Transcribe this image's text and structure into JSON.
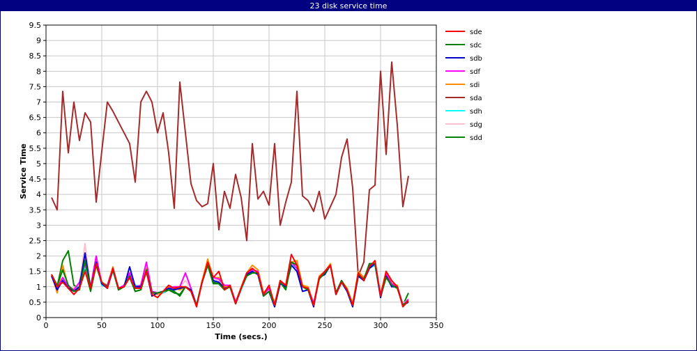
{
  "window": {
    "title": "23 disk service time"
  },
  "chart_data": {
    "type": "line",
    "title": "23 disk service time",
    "xlabel": "Time (secs.)",
    "ylabel": "Service Time",
    "xlim": [
      0,
      350
    ],
    "ylim": [
      0,
      9.5
    ],
    "xticks": [
      0,
      50,
      100,
      150,
      200,
      250,
      300,
      350
    ],
    "yticks": [
      0,
      0.5,
      1,
      1.5,
      2,
      2.5,
      3,
      3.5,
      4,
      4.5,
      5,
      5.5,
      6,
      6.5,
      7,
      7.5,
      8,
      8.5,
      9,
      9.5
    ],
    "grid": true,
    "legend_position": "right",
    "series": [
      {
        "name": "sdd",
        "color": "#008000",
        "x": [
          5,
          10,
          15,
          20,
          25,
          30,
          35,
          40,
          45,
          50,
          55,
          60,
          65,
          70,
          75,
          80,
          85,
          90,
          95,
          100,
          105,
          110,
          115,
          120,
          125,
          130,
          135,
          140,
          145,
          150,
          155,
          160,
          165,
          170,
          175,
          180,
          185,
          190,
          195,
          200,
          205,
          210,
          215,
          220,
          225,
          230,
          235,
          240,
          245,
          250,
          255,
          260,
          265,
          270,
          275,
          280,
          285,
          290,
          295,
          300,
          305,
          310,
          315,
          320,
          325
        ],
        "y": [
          1.35,
          1.0,
          1.85,
          2.17,
          1.05,
          0.95,
          1.55,
          0.85,
          1.7,
          1.1,
          1.0,
          1.55,
          0.9,
          1.0,
          1.3,
          0.85,
          0.9,
          1.5,
          0.8,
          0.8,
          0.8,
          0.9,
          0.85,
          0.7,
          1.0,
          0.85,
          0.4,
          1.2,
          1.75,
          1.15,
          1.1,
          0.95,
          1.05,
          0.5,
          0.95,
          1.35,
          1.45,
          1.45,
          0.7,
          0.9,
          0.4,
          1.15,
          0.95,
          1.8,
          1.7,
          1.05,
          0.9,
          0.45,
          1.25,
          1.5,
          1.7,
          0.8,
          1.2,
          0.9,
          0.4,
          1.4,
          1.2,
          1.75,
          1.75,
          0.7,
          1.3,
          1.05,
          1.0,
          0.4,
          0.8
        ]
      },
      {
        "name": "sdg",
        "color": "#FFC0CB",
        "x": [
          5,
          10,
          15,
          20,
          25,
          30,
          35,
          40,
          45,
          50,
          55,
          60,
          65,
          70,
          75,
          80,
          85,
          90,
          95,
          100,
          105,
          110,
          115,
          120,
          125,
          130,
          135,
          140,
          145,
          150,
          155,
          160,
          165,
          170,
          175,
          180,
          185,
          190,
          195,
          200,
          205,
          210,
          215,
          220,
          225,
          230,
          235,
          240,
          245,
          250,
          255,
          260,
          265,
          270,
          275,
          280,
          285,
          290,
          295,
          300,
          305,
          310,
          315,
          320,
          325
        ],
        "y": [
          1.4,
          0.95,
          1.3,
          1.0,
          0.95,
          1.1,
          2.4,
          1.0,
          1.9,
          1.1,
          1.0,
          1.6,
          0.9,
          1.0,
          1.45,
          1.0,
          1.05,
          1.55,
          0.8,
          0.8,
          0.85,
          0.95,
          0.95,
          1.0,
          1.2,
          0.95,
          0.4,
          1.15,
          1.75,
          1.25,
          1.2,
          1.0,
          1.0,
          0.5,
          0.95,
          1.4,
          1.5,
          1.45,
          0.75,
          0.9,
          0.4,
          1.1,
          1.05,
          1.75,
          1.65,
          1.0,
          0.95,
          0.45,
          1.3,
          1.45,
          1.7,
          0.8,
          1.15,
          0.85,
          0.4,
          1.4,
          1.25,
          1.65,
          1.7,
          0.75,
          1.35,
          1.05,
          1.0,
          0.45,
          0.6
        ]
      },
      {
        "name": "sdh",
        "color": "#00FFFF",
        "x": [
          5,
          10,
          15,
          20,
          25,
          30,
          35,
          40,
          45,
          50,
          55,
          60,
          65,
          70,
          75,
          80,
          85,
          90,
          95,
          100,
          105,
          110,
          115,
          120,
          125,
          130,
          135,
          140,
          145,
          150,
          155,
          160,
          165,
          170,
          175,
          180,
          185,
          190,
          195,
          200,
          205,
          210,
          215,
          220,
          225,
          230,
          235,
          240,
          245,
          250,
          255,
          260,
          265,
          270,
          275,
          280,
          285,
          290,
          295,
          300,
          305,
          310,
          315,
          320,
          325
        ],
        "y": [
          1.35,
          0.9,
          1.25,
          1.0,
          0.9,
          1.0,
          1.7,
          0.95,
          1.8,
          1.05,
          1.0,
          1.5,
          0.95,
          1.0,
          1.4,
          1.05,
          1.0,
          1.5,
          0.85,
          0.8,
          0.8,
          0.95,
          0.9,
          0.95,
          1.0,
          0.9,
          0.4,
          1.15,
          1.7,
          1.2,
          1.15,
          0.95,
          1.0,
          0.45,
          0.9,
          1.35,
          1.5,
          1.4,
          0.7,
          0.85,
          0.35,
          1.1,
          1.0,
          1.7,
          1.6,
          1.0,
          0.9,
          0.4,
          1.3,
          1.45,
          1.7,
          0.75,
          1.15,
          0.85,
          0.35,
          1.35,
          1.2,
          1.6,
          1.7,
          0.7,
          1.35,
          1.05,
          1.0,
          0.4,
          0.55
        ]
      },
      {
        "name": "sda",
        "color": "#A52A2A",
        "x": [
          5,
          10,
          15,
          20,
          25,
          30,
          35,
          40,
          45,
          50,
          55,
          60,
          65,
          70,
          75,
          80,
          85,
          90,
          95,
          100,
          105,
          110,
          115,
          120,
          125,
          130,
          135,
          140,
          145,
          150,
          155,
          160,
          165,
          170,
          175,
          180,
          185,
          190,
          195,
          200,
          205,
          210,
          215,
          220,
          225,
          230,
          235,
          240,
          245,
          250,
          255,
          260,
          265,
          270,
          275,
          280,
          285,
          290,
          295,
          300,
          305,
          310,
          315,
          320,
          325
        ],
        "y": [
          3.9,
          3.5,
          7.35,
          5.35,
          7.0,
          5.75,
          6.65,
          6.35,
          3.75,
          5.4,
          7.0,
          6.7,
          6.35,
          6.0,
          5.65,
          4.4,
          7.0,
          7.35,
          7.0,
          6.0,
          6.65,
          5.35,
          3.55,
          7.65,
          6.0,
          4.35,
          3.8,
          3.6,
          3.7,
          5.0,
          2.85,
          4.1,
          3.55,
          4.65,
          3.9,
          2.5,
          5.65,
          3.85,
          4.1,
          3.65,
          5.65,
          3.0,
          3.75,
          4.4,
          7.35,
          3.95,
          3.8,
          3.45,
          4.1,
          3.2,
          3.6,
          4.0,
          5.2,
          5.8,
          4.2,
          1.35,
          1.8,
          4.15,
          4.3,
          8.0,
          5.3,
          8.3,
          6.25,
          3.6,
          4.6
        ]
      },
      {
        "name": "sdi",
        "color": "#FF8C00",
        "x": [
          5,
          10,
          15,
          20,
          25,
          30,
          35,
          40,
          45,
          50,
          55,
          60,
          65,
          70,
          75,
          80,
          85,
          90,
          95,
          100,
          105,
          110,
          115,
          120,
          125,
          130,
          135,
          140,
          145,
          150,
          155,
          160,
          165,
          170,
          175,
          180,
          185,
          190,
          195,
          200,
          205,
          210,
          215,
          220,
          225,
          230,
          235,
          240,
          245,
          250,
          255,
          260,
          265,
          270,
          275,
          280,
          285,
          290,
          295,
          300,
          305,
          310,
          315,
          320,
          325
        ],
        "y": [
          1.4,
          0.8,
          1.7,
          1.0,
          0.9,
          0.95,
          1.9,
          1.0,
          1.85,
          1.15,
          1.05,
          1.65,
          0.9,
          1.05,
          1.35,
          0.95,
          1.0,
          1.6,
          0.8,
          0.75,
          0.85,
          1.0,
          0.95,
          0.9,
          1.0,
          0.9,
          0.4,
          1.2,
          1.9,
          1.3,
          1.3,
          1.0,
          1.05,
          0.5,
          1.0,
          1.45,
          1.7,
          1.55,
          0.8,
          1.0,
          0.45,
          1.2,
          1.05,
          1.8,
          1.85,
          1.05,
          1.0,
          0.45,
          1.35,
          1.5,
          1.75,
          0.8,
          1.2,
          0.95,
          0.45,
          1.5,
          1.3,
          1.65,
          1.75,
          0.75,
          1.5,
          1.1,
          1.05,
          0.35,
          0.55
        ]
      },
      {
        "name": "sdf",
        "color": "#FF00FF",
        "x": [
          5,
          10,
          15,
          20,
          25,
          30,
          35,
          40,
          45,
          50,
          55,
          60,
          65,
          70,
          75,
          80,
          85,
          90,
          95,
          100,
          105,
          110,
          115,
          120,
          125,
          130,
          135,
          140,
          145,
          150,
          155,
          160,
          165,
          170,
          175,
          180,
          185,
          190,
          195,
          200,
          205,
          210,
          215,
          220,
          225,
          230,
          235,
          240,
          245,
          250,
          255,
          260,
          265,
          270,
          275,
          280,
          285,
          290,
          295,
          300,
          305,
          310,
          315,
          320,
          325
        ],
        "y": [
          1.35,
          0.95,
          1.3,
          1.0,
          0.9,
          1.15,
          1.75,
          1.0,
          2.0,
          1.1,
          1.05,
          1.6,
          0.95,
          1.05,
          1.45,
          1.0,
          1.05,
          1.8,
          0.85,
          0.8,
          0.85,
          0.95,
          1.0,
          1.0,
          1.45,
          0.95,
          0.4,
          1.15,
          1.75,
          1.3,
          1.25,
          1.05,
          1.05,
          0.5,
          0.95,
          1.45,
          1.55,
          1.5,
          0.75,
          0.95,
          0.4,
          1.15,
          1.05,
          1.8,
          1.6,
          1.0,
          0.95,
          0.45,
          1.3,
          1.5,
          1.7,
          0.8,
          1.2,
          0.9,
          0.4,
          1.4,
          1.25,
          1.7,
          1.75,
          0.75,
          1.4,
          1.1,
          1.0,
          0.4,
          0.6
        ]
      },
      {
        "name": "sdb",
        "color": "#0000CD",
        "x": [
          5,
          10,
          15,
          20,
          25,
          30,
          35,
          40,
          45,
          50,
          55,
          60,
          65,
          70,
          75,
          80,
          85,
          90,
          95,
          100,
          105,
          110,
          115,
          120,
          125,
          130,
          135,
          140,
          145,
          150,
          155,
          160,
          165,
          170,
          175,
          180,
          185,
          190,
          195,
          200,
          205,
          210,
          215,
          220,
          225,
          230,
          235,
          240,
          245,
          250,
          255,
          260,
          265,
          270,
          275,
          280,
          285,
          290,
          295,
          300,
          305,
          310,
          315,
          320,
          325
        ],
        "y": [
          1.35,
          0.9,
          1.2,
          0.95,
          0.85,
          1.0,
          2.1,
          0.95,
          1.8,
          1.1,
          0.95,
          1.55,
          0.95,
          1.0,
          1.65,
          1.0,
          1.0,
          1.5,
          0.7,
          0.8,
          0.85,
          0.95,
          0.9,
          0.95,
          1.0,
          0.9,
          0.4,
          1.15,
          1.7,
          1.2,
          1.15,
          0.95,
          1.0,
          0.45,
          0.95,
          1.4,
          1.5,
          1.4,
          0.7,
          0.85,
          0.35,
          1.1,
          1.0,
          1.7,
          1.5,
          0.85,
          0.9,
          0.35,
          1.3,
          1.4,
          1.7,
          0.75,
          1.15,
          0.85,
          0.35,
          1.35,
          1.2,
          1.6,
          1.75,
          0.65,
          1.35,
          1.0,
          1.0,
          0.4,
          0.5
        ]
      },
      {
        "name": "sdc",
        "color": "#008000",
        "x": [
          5,
          10,
          15,
          20,
          25,
          30,
          35,
          40,
          45,
          50,
          55,
          60,
          65,
          70,
          75,
          80,
          85,
          90,
          95,
          100,
          105,
          110,
          115,
          120,
          125,
          130,
          135,
          140,
          145,
          150,
          155,
          160,
          165,
          170,
          175,
          180,
          185,
          190,
          195,
          200,
          205,
          210,
          215,
          220,
          225,
          230,
          235,
          240,
          245,
          250,
          255,
          260,
          265,
          270,
          275,
          280,
          285,
          290,
          295,
          300,
          305,
          310,
          315,
          320,
          325
        ],
        "y": [
          1.4,
          1.05,
          1.55,
          1.05,
          0.85,
          0.9,
          1.85,
          0.95,
          1.7,
          1.15,
          1.0,
          1.55,
          0.9,
          1.0,
          1.35,
          0.85,
          0.9,
          1.55,
          0.8,
          0.8,
          0.85,
          0.9,
          0.8,
          0.75,
          1.0,
          0.85,
          0.4,
          1.15,
          1.7,
          1.1,
          1.1,
          0.9,
          1.0,
          0.45,
          0.95,
          1.35,
          1.45,
          1.45,
          0.7,
          0.85,
          0.4,
          1.15,
          0.9,
          1.8,
          1.7,
          1.0,
          0.9,
          0.4,
          1.25,
          1.45,
          1.7,
          0.8,
          1.2,
          0.9,
          0.4,
          1.4,
          1.25,
          1.75,
          1.75,
          0.7,
          1.3,
          1.05,
          0.95,
          0.4,
          0.55
        ]
      },
      {
        "name": "sde",
        "color": "#FF0000",
        "x": [
          5,
          10,
          15,
          20,
          25,
          30,
          35,
          40,
          45,
          50,
          55,
          60,
          65,
          70,
          75,
          80,
          85,
          90,
          95,
          100,
          105,
          110,
          115,
          120,
          125,
          130,
          135,
          140,
          145,
          150,
          155,
          160,
          165,
          170,
          175,
          180,
          185,
          190,
          195,
          200,
          205,
          210,
          215,
          220,
          225,
          230,
          235,
          240,
          245,
          250,
          255,
          260,
          265,
          270,
          275,
          280,
          285,
          290,
          295,
          300,
          305,
          310,
          315,
          320,
          325
        ],
        "y": [
          1.4,
          1.0,
          1.15,
          0.95,
          0.75,
          0.95,
          1.5,
          0.95,
          1.75,
          1.15,
          0.95,
          1.6,
          0.95,
          1.0,
          1.3,
          0.95,
          0.95,
          1.5,
          0.75,
          0.65,
          0.85,
          1.05,
          0.95,
          1.0,
          1.0,
          0.85,
          0.35,
          1.15,
          1.8,
          1.3,
          1.5,
          0.9,
          1.05,
          0.45,
          0.95,
          1.45,
          1.6,
          1.45,
          0.75,
          1.05,
          0.4,
          1.2,
          1.05,
          2.05,
          1.7,
          1.0,
          0.95,
          0.4,
          1.3,
          1.5,
          1.7,
          0.75,
          1.15,
          0.9,
          0.4,
          1.45,
          1.2,
          1.65,
          1.85,
          0.7,
          1.5,
          1.2,
          1.0,
          0.35,
          0.55
        ]
      }
    ],
    "legend": [
      {
        "name": "sde",
        "color": "#FF0000"
      },
      {
        "name": "sdc",
        "color": "#008000"
      },
      {
        "name": "sdb",
        "color": "#0000CD"
      },
      {
        "name": "sdf",
        "color": "#FF00FF"
      },
      {
        "name": "sdi",
        "color": "#FF8C00"
      },
      {
        "name": "sda",
        "color": "#A52A2A"
      },
      {
        "name": "sdh",
        "color": "#00FFFF"
      },
      {
        "name": "sdg",
        "color": "#FFC0CB"
      },
      {
        "name": "sdd",
        "color": "#008000"
      }
    ]
  }
}
